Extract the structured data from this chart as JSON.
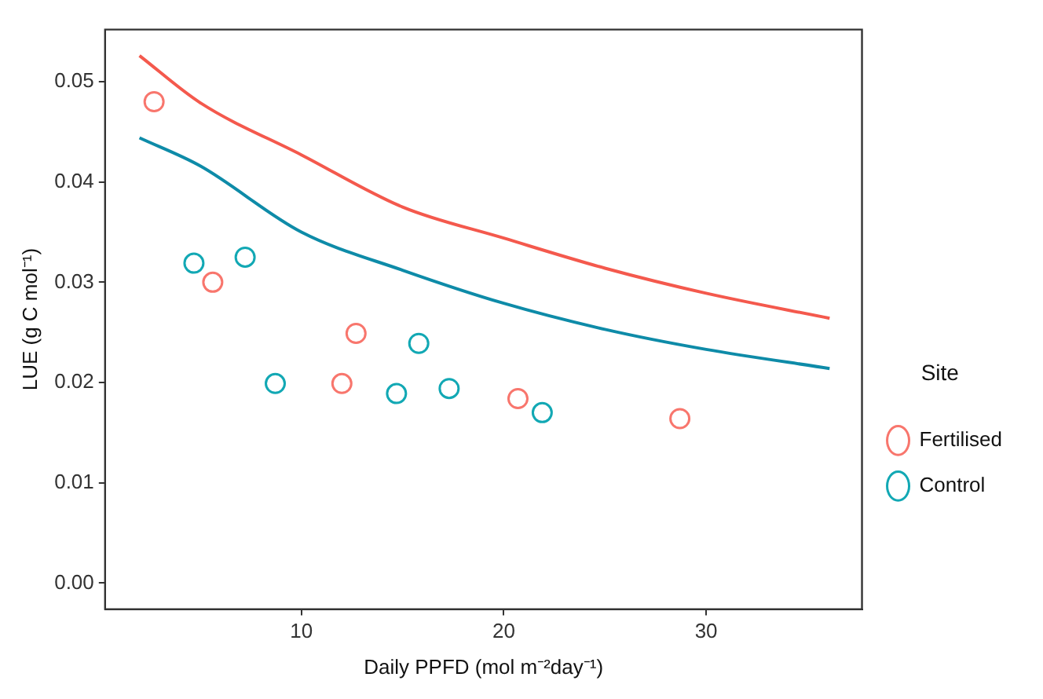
{
  "chart_data": {
    "type": "scatter",
    "xlabel": "Daily PPFD (mol m⁻²day⁻¹)",
    "ylabel": "LUE (g C mol⁻¹)",
    "legend_title": "Site",
    "legend": "right",
    "marker": "circle",
    "grid": false,
    "xlim": [
      0.3,
      37.7
    ],
    "xticks": [
      10,
      20,
      30
    ],
    "ylim": [
      -0.0026,
      0.0552
    ],
    "yticks": [
      {
        "value": 0,
        "label": "0.00"
      },
      0.01,
      0.02,
      0.03,
      0.04,
      0.05
    ],
    "series": [
      {
        "type": "line",
        "marker": "none",
        "color": "#f4594d",
        "x": [
          2,
          5,
          10,
          15,
          20,
          25,
          30,
          36.1
        ],
        "values": [
          0.0526,
          0.0479,
          0.0427,
          0.0375,
          0.0344,
          0.0314,
          0.0289,
          0.0264
        ]
      },
      {
        "type": "line",
        "marker": "none",
        "color": "#0e8ba8",
        "x": [
          2,
          5,
          10,
          15,
          20,
          25,
          30,
          36.1
        ],
        "values": [
          0.0444,
          0.0416,
          0.035,
          0.0312,
          0.0279,
          0.0253,
          0.0233,
          0.0214
        ]
      },
      {
        "name": "Fertilised",
        "color": "#f8766d",
        "x": [
          2.72,
          5.62,
          12.0,
          12.7,
          20.7,
          28.7
        ],
        "values": [
          0.048,
          0.03,
          0.0199,
          0.0249,
          0.0184,
          0.0164
        ]
      },
      {
        "name": "Control",
        "color": "#12a8b4",
        "x": [
          4.69,
          7.22,
          8.71,
          14.7,
          15.8,
          17.3,
          21.9
        ],
        "values": [
          0.0319,
          0.0325,
          0.0199,
          0.0189,
          0.0239,
          0.0194,
          0.017
        ]
      }
    ]
  }
}
